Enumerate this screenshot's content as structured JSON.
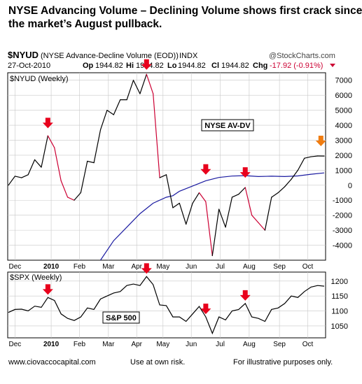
{
  "headline": {
    "line1": "NYSE Advancing Volume – Declining Volume shows first crack since",
    "line2": "the market’s August pullback."
  },
  "header": {
    "symbol": "$NYUD",
    "name": "(NYSE Advance-Decline Volume (EOD))",
    "exchange": "INDX",
    "brand": "@StockCharts.com",
    "date": "27-Oct-2010",
    "op_label": "Op",
    "op_value": "1944.82",
    "hi_label": "Hi",
    "hi_value": "1944.82",
    "lo_label": "Lo",
    "lo_value": "1944.82",
    "cl_label": "Cl",
    "cl_value": "1944.82",
    "chg_label": "Chg",
    "chg_value": "-17.92 (-0.91%)"
  },
  "footer": {
    "site": "www.ciovaccocapital.com",
    "risk": "Use at own risk.",
    "illustrative": "For illustrative purposes only."
  },
  "colors": {
    "up_line": "#000000",
    "down_line": "#cc0033",
    "moving_average": "#1a1aa0",
    "arrow_red": "#e8001c",
    "arrow_orange": "#f07c10",
    "grid": "#c8c8c8"
  },
  "chart_data": [
    {
      "type": "line",
      "panel_label": "$NYUD (Weekly)",
      "annotation": "NYSE AV-DV",
      "ylim": [
        -5000,
        7500
      ],
      "y_ticks": [
        7000,
        6000,
        5000,
        4000,
        3000,
        2000,
        1000,
        0,
        -1000,
        -2000,
        -3000,
        -4000
      ],
      "x_ticks": [
        "Dec",
        "2010",
        "Feb",
        "Mar",
        "Apr",
        "May",
        "Jun",
        "Jul",
        "Aug",
        "Sep",
        "Oct"
      ],
      "x_tick_weeks": [
        1.0,
        6.5,
        10.8,
        15.2,
        19.5,
        23.5,
        27.8,
        32.2,
        36.6,
        41.2,
        45.5
      ],
      "x_range": [
        0,
        48
      ],
      "weeks": [
        0,
        1,
        2,
        3,
        4,
        5,
        6,
        7,
        8,
        9,
        10,
        11,
        12,
        13,
        14,
        15,
        16,
        17,
        18,
        19,
        20,
        21,
        22,
        23,
        24,
        25,
        26,
        27,
        28,
        29,
        30,
        31,
        32,
        33,
        34,
        35,
        36,
        37,
        38,
        39,
        40,
        41,
        42,
        43,
        44,
        45,
        46,
        47,
        48
      ],
      "values": [
        0,
        600,
        500,
        700,
        1700,
        1200,
        3300,
        2500,
        300,
        -800,
        -1000,
        -500,
        1600,
        1500,
        3700,
        5000,
        4700,
        5700,
        5700,
        7000,
        6100,
        7400,
        6100,
        500,
        700,
        -1500,
        -1200,
        -2600,
        -1200,
        -500,
        -1100,
        -4700,
        -1600,
        -2800,
        -800,
        -600,
        -150,
        -2000,
        -2500,
        -3000,
        -800,
        -500,
        -100,
        400,
        1000,
        1800,
        1900,
        1950,
        1944.82
      ],
      "red_segments": [
        [
          6,
          10
        ],
        [
          21,
          23
        ],
        [
          29,
          31
        ],
        [
          36,
          39
        ]
      ],
      "moving_average": {
        "name": "",
        "weeks": [
          14,
          16,
          18,
          20,
          22,
          24,
          25,
          26,
          28,
          30,
          32,
          34,
          36,
          38,
          40,
          42,
          44,
          46,
          48
        ],
        "values": [
          -5000,
          -3700,
          -2800,
          -1900,
          -1200,
          -800,
          -700,
          -400,
          -50,
          300,
          520,
          610,
          640,
          580,
          600,
          580,
          620,
          730,
          820
        ]
      },
      "arrows": [
        {
          "color": "red",
          "week": 6.0,
          "value": 3800
        },
        {
          "color": "red",
          "week": 21.0,
          "value": 7700
        },
        {
          "color": "red",
          "week": 30.0,
          "value": 700
        },
        {
          "color": "red",
          "week": 36.0,
          "value": 500
        },
        {
          "color": "orange",
          "week": 47.5,
          "value": 2600
        }
      ]
    },
    {
      "type": "line",
      "panel_label": "$SPX (Weekly)",
      "annotation": "S&P 500",
      "ylim": [
        1010,
        1230
      ],
      "y_ticks": [
        1200,
        1150,
        1100,
        1050
      ],
      "x_ticks": [
        "Dec",
        "2010",
        "Feb",
        "Mar",
        "Apr",
        "May",
        "Jun",
        "Jul",
        "Aug",
        "Sep",
        "Oct"
      ],
      "x_tick_weeks": [
        1.0,
        6.5,
        10.8,
        15.2,
        19.5,
        23.5,
        27.8,
        32.2,
        36.6,
        41.2,
        45.5
      ],
      "x_range": [
        0,
        48
      ],
      "weeks": [
        0,
        1,
        2,
        3,
        4,
        5,
        6,
        7,
        8,
        9,
        10,
        11,
        12,
        13,
        14,
        15,
        16,
        17,
        18,
        19,
        20,
        21,
        22,
        23,
        24,
        25,
        26,
        27,
        28,
        29,
        30,
        31,
        32,
        33,
        34,
        35,
        36,
        37,
        38,
        39,
        40,
        41,
        42,
        43,
        44,
        45,
        46,
        47,
        48
      ],
      "values": [
        1095,
        1105,
        1106,
        1100,
        1116,
        1112,
        1145,
        1135,
        1090,
        1075,
        1068,
        1080,
        1110,
        1105,
        1140,
        1150,
        1160,
        1165,
        1185,
        1190,
        1185,
        1215,
        1188,
        1120,
        1118,
        1080,
        1080,
        1065,
        1090,
        1115,
        1080,
        1025,
        1080,
        1070,
        1100,
        1105,
        1125,
        1080,
        1075,
        1065,
        1105,
        1110,
        1125,
        1150,
        1145,
        1165,
        1180,
        1185,
        1183
      ]
    }
  ]
}
